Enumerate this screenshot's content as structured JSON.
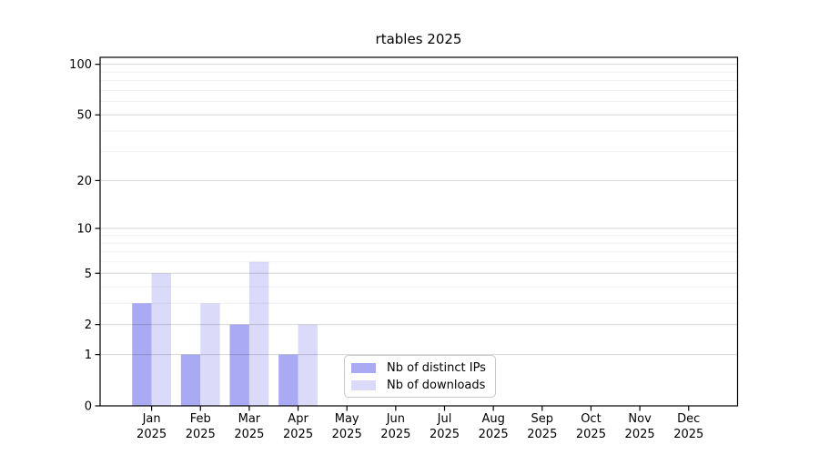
{
  "chart_data": {
    "type": "bar",
    "title": "rtables 2025",
    "categories": [
      "Jan",
      "Feb",
      "Mar",
      "Apr",
      "May",
      "Jun",
      "Jul",
      "Aug",
      "Sep",
      "Oct",
      "Nov",
      "Dec"
    ],
    "category_year": "2025",
    "series": [
      {
        "name": "Nb of distinct IPs",
        "color": "#a9a9f4",
        "values": [
          3,
          1,
          2,
          1,
          0,
          0,
          0,
          0,
          0,
          0,
          0,
          0
        ]
      },
      {
        "name": "Nb of downloads",
        "color": "#dbdbf9",
        "values": [
          5,
          3,
          6,
          2,
          0,
          0,
          0,
          0,
          0,
          0,
          0,
          0
        ]
      }
    ],
    "yscale": "log1p",
    "ylim": [
      0,
      110
    ],
    "y_tick_labels": [
      0,
      1,
      2,
      5,
      10,
      20,
      50,
      100
    ],
    "y_minor_gridlines": [
      3,
      4,
      6,
      7,
      8,
      9,
      30,
      40,
      60,
      70,
      80,
      90
    ],
    "xlabel": "",
    "ylabel": "",
    "grid": "horizontal",
    "grid_above_bars": true,
    "legend_position": "lower center inside"
  },
  "colors": {
    "background": "#ffffff",
    "spine": "#000000",
    "grid_major": "rgba(0,0,0,0.16)",
    "grid_minor": "rgba(0,0,0,0.06)",
    "text": "#000000",
    "legend_border": "#c9c9c9"
  }
}
